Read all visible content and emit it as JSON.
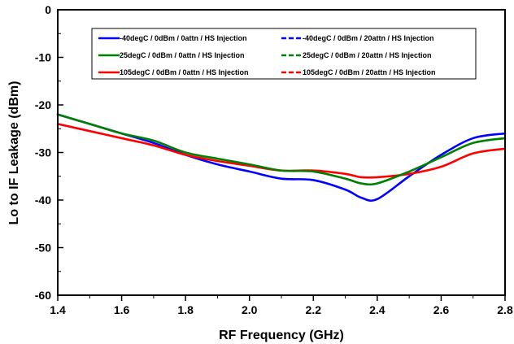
{
  "chart_data": {
    "type": "line",
    "xlabel": "RF Frequency (GHz)",
    "ylabel": "Lo to IF Leakage (dBm)",
    "xlim": [
      1.4,
      2.8
    ],
    "ylim": [
      -60,
      0
    ],
    "x_ticks": [
      "1.4",
      "1.6",
      "1.8",
      "2.0",
      "2.2",
      "2.4",
      "2.6",
      "2.8"
    ],
    "x_tick_values": [
      1.4,
      1.6,
      1.8,
      2.0,
      2.2,
      2.4,
      2.6,
      2.8
    ],
    "y_ticks": [
      "0",
      "-10",
      "-20",
      "-30",
      "-40",
      "-50",
      "-60"
    ],
    "y_tick_values": [
      0,
      -10,
      -20,
      -30,
      -40,
      -50,
      -60
    ],
    "grid": false,
    "legend_position": "top",
    "series": [
      {
        "name": "-40degC /  0dBm /  0attn /  HS Injection",
        "color": "#0000ff",
        "dash": "solid",
        "x": [
          1.4,
          1.5,
          1.6,
          1.7,
          1.8,
          1.9,
          2.0,
          2.1,
          2.2,
          2.3,
          2.35,
          2.4,
          2.5,
          2.6,
          2.7,
          2.8
        ],
        "y": [
          -22,
          -24,
          -26,
          -28,
          -30.5,
          -32.5,
          -34,
          -35.5,
          -35.8,
          -37.8,
          -39.5,
          -39.8,
          -35,
          -30.5,
          -27,
          -26
        ]
      },
      {
        "name": "-40degC /  0dBm /  20attn /  HS Injection",
        "color": "#0000ff",
        "dash": "dashed",
        "x": [],
        "y": []
      },
      {
        "name": "25degC /  0dBm /  0attn /  HS Injection",
        "color": "#008000",
        "dash": "solid",
        "x": [
          1.4,
          1.5,
          1.6,
          1.7,
          1.8,
          1.9,
          2.0,
          2.1,
          2.2,
          2.3,
          2.35,
          2.4,
          2.5,
          2.6,
          2.7,
          2.8
        ],
        "y": [
          -22,
          -24,
          -26,
          -27.5,
          -30,
          -31.3,
          -32.5,
          -33.8,
          -34,
          -35.5,
          -36.5,
          -36.5,
          -34,
          -31,
          -28,
          -27
        ]
      },
      {
        "name": "25degC /  0dBm /  20attn /  HS Injection",
        "color": "#008000",
        "dash": "dashed",
        "x": [],
        "y": []
      },
      {
        "name": "105degC /  0dBm /  0attn /  HS Injection",
        "color": "#ff0000",
        "dash": "solid",
        "x": [
          1.4,
          1.5,
          1.6,
          1.7,
          1.8,
          1.9,
          2.0,
          2.1,
          2.2,
          2.3,
          2.35,
          2.4,
          2.5,
          2.6,
          2.7,
          2.8
        ],
        "y": [
          -24,
          -25.5,
          -27,
          -28.5,
          -30.5,
          -31.8,
          -32.8,
          -33.8,
          -33.8,
          -34.5,
          -35.2,
          -35.2,
          -34.5,
          -33,
          -30.2,
          -29.2
        ]
      },
      {
        "name": "105degC /  0dBm /  20attn /  HS Injection",
        "color": "#ff0000",
        "dash": "dashed",
        "x": [],
        "y": []
      }
    ]
  }
}
